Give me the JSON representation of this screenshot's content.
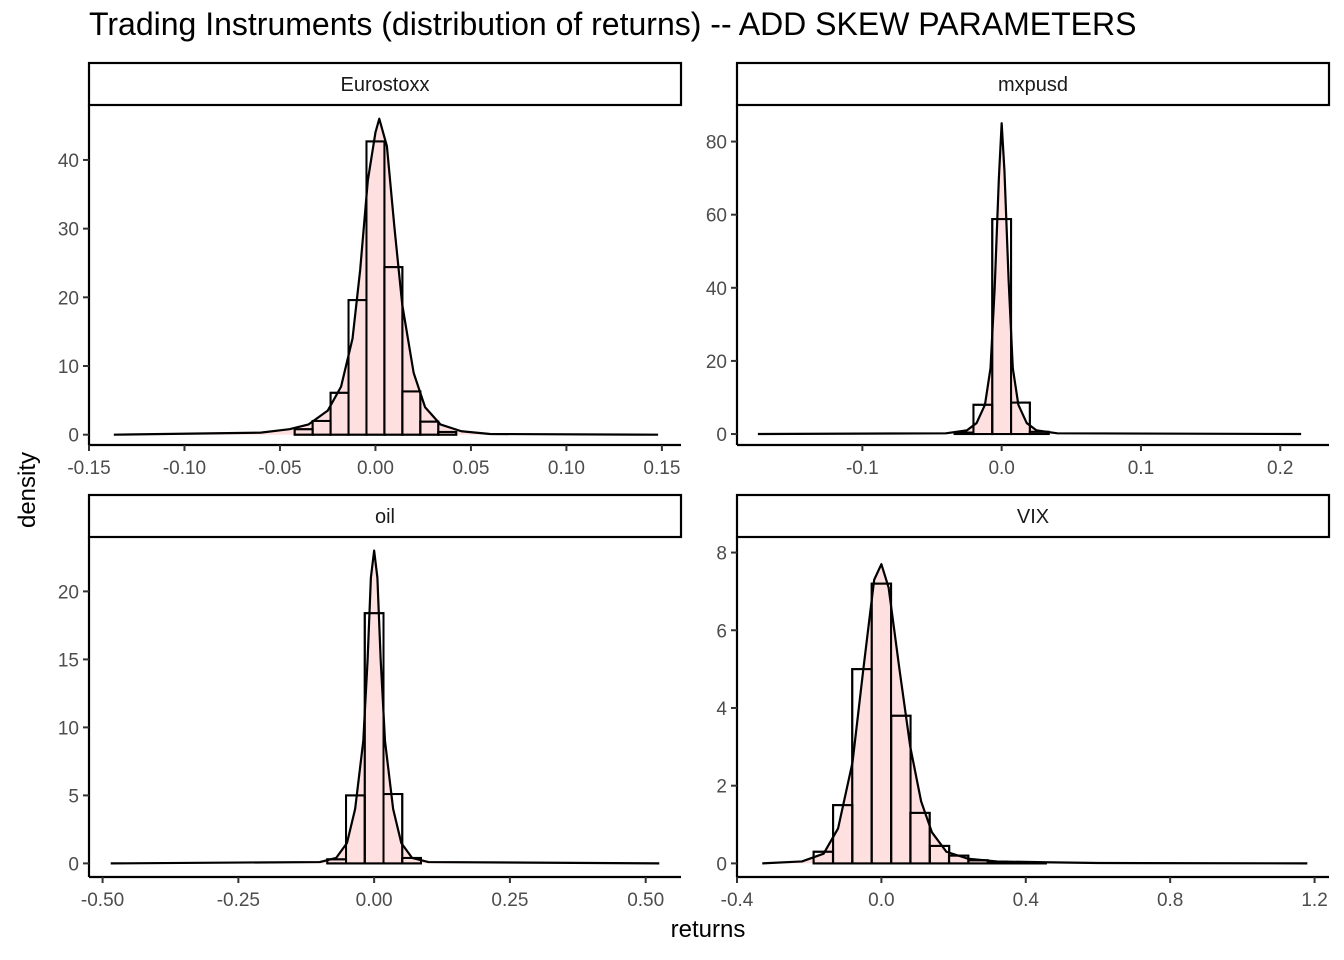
{
  "title": "Trading Instruments (distribution of returns) -- ADD SKEW PARAMETERS",
  "xlabel": "returns",
  "ylabel": "density",
  "chart_data": [
    {
      "type": "bar",
      "panel": "Eurostoxx",
      "x_ticks": [
        "-0.15",
        "-0.10",
        "-0.05",
        "0.00",
        "0.05",
        "0.10",
        "0.15"
      ],
      "y_ticks": [
        "0",
        "10",
        "20",
        "30",
        "40"
      ],
      "xlim": [
        -0.15,
        0.16
      ],
      "ylim": [
        -1.5,
        48
      ],
      "histogram": {
        "bin_width": 0.0094,
        "centers": [
          -0.0376,
          -0.0282,
          -0.0188,
          -0.0094,
          0.0,
          0.0094,
          0.0188,
          0.0282,
          0.0376
        ],
        "values": [
          0.8,
          2.0,
          6.1,
          19.6,
          42.7,
          24.4,
          6.3,
          1.9,
          0.4
        ]
      },
      "density": {
        "x": [
          -0.137,
          -0.06,
          -0.045,
          -0.035,
          -0.025,
          -0.018,
          -0.012,
          -0.008,
          -0.004,
          0.0,
          0.002,
          0.006,
          0.01,
          0.014,
          0.02,
          0.026,
          0.034,
          0.045,
          0.06,
          0.148
        ],
        "y": [
          0,
          0.3,
          0.8,
          1.5,
          3.5,
          7,
          14,
          24,
          37,
          44,
          46,
          42,
          30,
          19,
          9,
          4,
          1.5,
          0.5,
          0.1,
          0
        ]
      }
    },
    {
      "type": "bar",
      "panel": "mxpusd",
      "x_ticks": [
        "-0.1",
        "0.0",
        "0.1",
        "0.2"
      ],
      "y_ticks": [
        "0",
        "20",
        "40",
        "60",
        "80"
      ],
      "xlim": [
        -0.19,
        0.235
      ],
      "ylim": [
        -3,
        90
      ],
      "histogram": {
        "bin_width": 0.0135,
        "centers": [
          -0.027,
          -0.0135,
          0.0,
          0.0135,
          0.027
        ],
        "values": [
          0.4,
          8.0,
          58.8,
          8.6,
          0.6
        ]
      },
      "density": {
        "x": [
          -0.175,
          -0.04,
          -0.025,
          -0.018,
          -0.012,
          -0.008,
          -0.005,
          -0.002,
          0.0,
          0.002,
          0.005,
          0.008,
          0.012,
          0.018,
          0.025,
          0.04,
          0.215
        ],
        "y": [
          0,
          0.2,
          1,
          3,
          8,
          18,
          40,
          70,
          85,
          72,
          42,
          18,
          8,
          3,
          1,
          0.2,
          0
        ]
      }
    },
    {
      "type": "bar",
      "panel": "oil",
      "x_ticks": [
        "-0.50",
        "-0.25",
        "0.00",
        "0.25",
        "0.50"
      ],
      "y_ticks": [
        "0",
        "5",
        "10",
        "15",
        "20"
      ],
      "xlim": [
        -0.525,
        0.565
      ],
      "ylim": [
        -1,
        24
      ],
      "histogram": {
        "bin_width": 0.0345,
        "centers": [
          -0.069,
          -0.0345,
          0.0,
          0.0345,
          0.069
        ],
        "values": [
          0.3,
          5.0,
          18.4,
          5.1,
          0.4
        ]
      },
      "density": {
        "x": [
          -0.485,
          -0.1,
          -0.07,
          -0.05,
          -0.035,
          -0.02,
          -0.012,
          -0.006,
          0.0,
          0.006,
          0.012,
          0.02,
          0.035,
          0.05,
          0.07,
          0.1,
          0.525
        ],
        "y": [
          0,
          0.1,
          0.4,
          1.5,
          4,
          9,
          15,
          21,
          23,
          21,
          15,
          9,
          4,
          1.5,
          0.4,
          0.1,
          0
        ]
      }
    },
    {
      "type": "bar",
      "panel": "VIX",
      "x_ticks": [
        "-0.4",
        "0.0",
        "0.4",
        "0.8",
        "1.2"
      ],
      "y_ticks": [
        "0",
        "2",
        "4",
        "6",
        "8"
      ],
      "xlim": [
        -0.4,
        1.24
      ],
      "ylim": [
        -0.35,
        8.4
      ],
      "histogram": {
        "bin_width": 0.0536,
        "centers": [
          -0.161,
          -0.107,
          -0.054,
          0.0,
          0.054,
          0.107,
          0.161,
          0.214,
          0.268,
          0.322,
          0.375,
          0.429
        ],
        "values": [
          0.3,
          1.5,
          5.0,
          7.2,
          3.8,
          1.3,
          0.45,
          0.2,
          0.08,
          0.04,
          0.02,
          0.02
        ]
      },
      "density": {
        "x": [
          -0.33,
          -0.22,
          -0.16,
          -0.12,
          -0.08,
          -0.05,
          -0.02,
          0.0,
          0.02,
          0.05,
          0.08,
          0.11,
          0.14,
          0.18,
          0.24,
          0.32,
          0.45,
          0.6,
          1.18
        ],
        "y": [
          0,
          0.05,
          0.25,
          0.9,
          2.6,
          5.0,
          7.3,
          7.7,
          7.1,
          5.0,
          3.0,
          1.6,
          0.8,
          0.3,
          0.12,
          0.05,
          0.03,
          0.01,
          0
        ]
      }
    }
  ]
}
